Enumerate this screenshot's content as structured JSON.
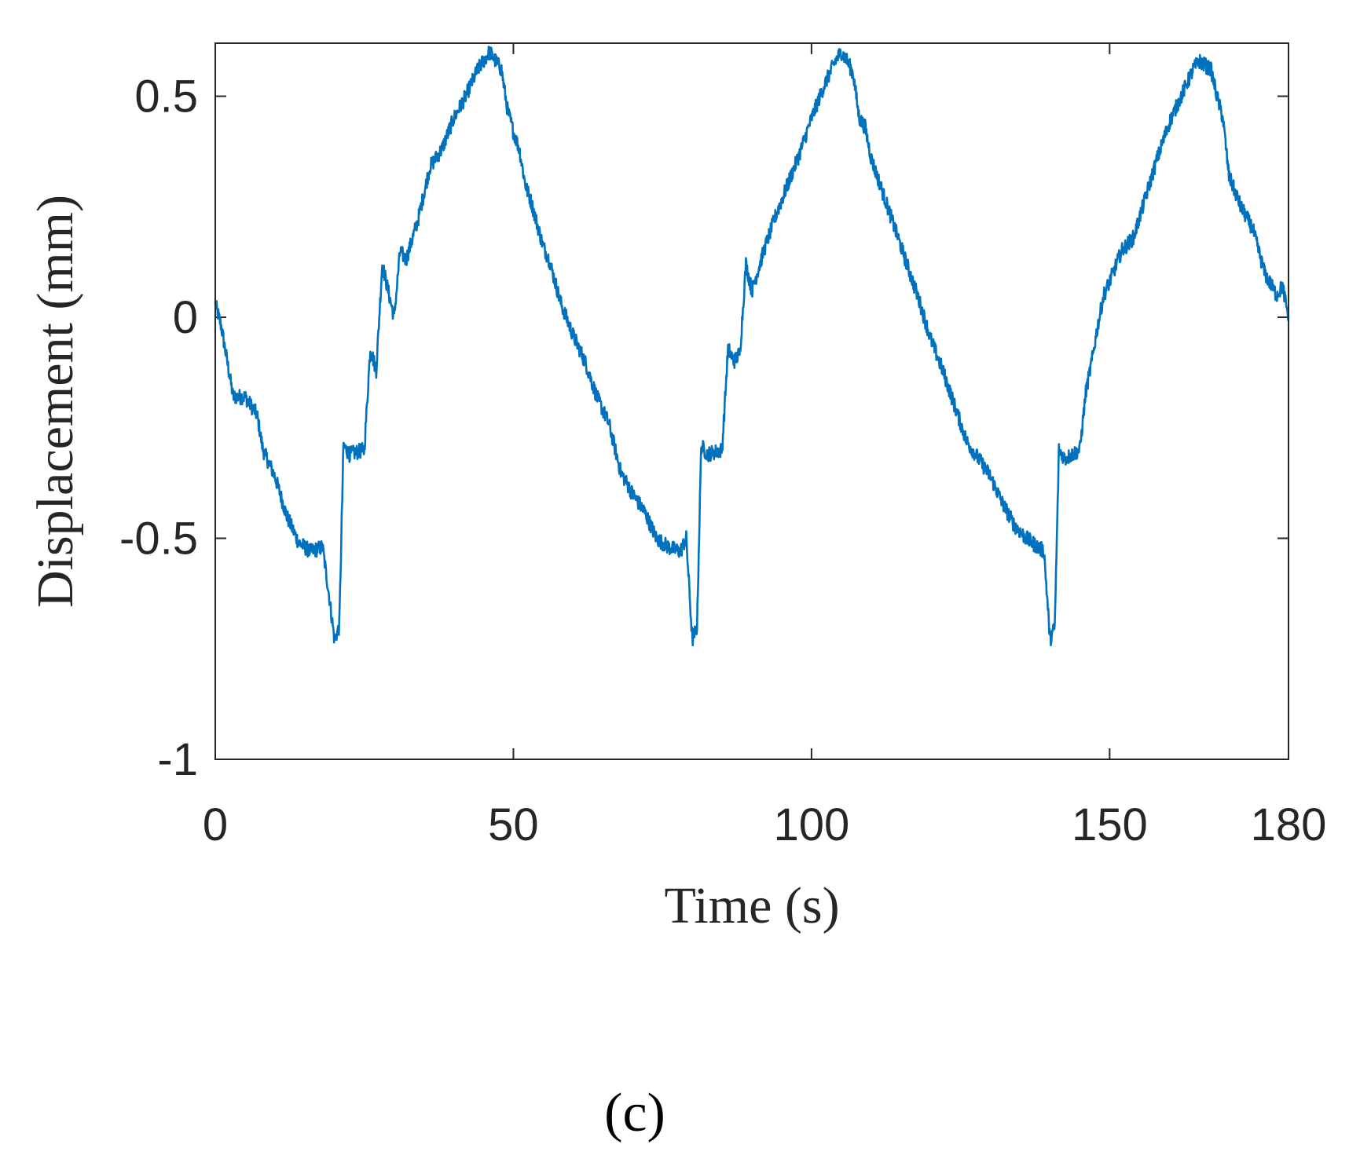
{
  "chart_data": {
    "type": "line",
    "xlabel": "Time (s)",
    "ylabel": "Displacement (mm)",
    "panel_label": "(c)",
    "xlim": [
      0,
      180
    ],
    "ylim": [
      -1,
      0.62
    ],
    "xticks": [
      0,
      50,
      100,
      150,
      180
    ],
    "xtick_labels": [
      "0",
      "50",
      "100",
      "150",
      "180"
    ],
    "yticks": [
      -1,
      -0.5,
      0,
      0.5
    ],
    "ytick_labels": [
      "-1",
      "-0.5",
      "0",
      "0.5"
    ],
    "grid": false,
    "line_color": "#0072BD",
    "series": [
      {
        "x": [
          0,
          1,
          2,
          3,
          5,
          7,
          8,
          10,
          12,
          14,
          16,
          18,
          19,
          20,
          20.8,
          21.5,
          22.5,
          25,
          26,
          27,
          28,
          29,
          30,
          31,
          32,
          34,
          36,
          38,
          40,
          42,
          44,
          46,
          47,
          48,
          49,
          50,
          51,
          52,
          53,
          55,
          56,
          58,
          60,
          62,
          64,
          66,
          68,
          70,
          72,
          74,
          76,
          78,
          79,
          80,
          80.8,
          81.5,
          82.5,
          85,
          86,
          87,
          88,
          89,
          90,
          92,
          94,
          96,
          98,
          100,
          102,
          104,
          105,
          106,
          107,
          108,
          109,
          110,
          112,
          114,
          116,
          118,
          120,
          122,
          124,
          126,
          128,
          130,
          132,
          134,
          136,
          138,
          139,
          140,
          140.8,
          141.5,
          142.5,
          145,
          146,
          147,
          148,
          149,
          150,
          152,
          154,
          156,
          158,
          160,
          162,
          164,
          165,
          166,
          167,
          168,
          169,
          170,
          172,
          174,
          176,
          178,
          179,
          180
        ],
        "y": [
          0.03,
          -0.02,
          -0.1,
          -0.18,
          -0.18,
          -0.22,
          -0.3,
          -0.36,
          -0.45,
          -0.51,
          -0.53,
          -0.52,
          -0.62,
          -0.73,
          -0.7,
          -0.29,
          -0.31,
          -0.3,
          -0.07,
          -0.12,
          0.12,
          0.06,
          0.0,
          0.15,
          0.13,
          0.22,
          0.34,
          0.38,
          0.45,
          0.5,
          0.56,
          0.6,
          0.58,
          0.56,
          0.47,
          0.42,
          0.38,
          0.3,
          0.26,
          0.16,
          0.13,
          0.03,
          -0.04,
          -0.1,
          -0.18,
          -0.24,
          -0.35,
          -0.4,
          -0.44,
          -0.5,
          -0.52,
          -0.53,
          -0.5,
          -0.73,
          -0.7,
          -0.29,
          -0.31,
          -0.3,
          -0.07,
          -0.1,
          -0.08,
          0.12,
          0.06,
          0.15,
          0.23,
          0.3,
          0.37,
          0.45,
          0.52,
          0.58,
          0.6,
          0.58,
          0.55,
          0.45,
          0.43,
          0.36,
          0.28,
          0.2,
          0.12,
          0.04,
          -0.05,
          -0.12,
          -0.2,
          -0.28,
          -0.32,
          -0.36,
          -0.42,
          -0.47,
          -0.5,
          -0.52,
          -0.53,
          -0.73,
          -0.7,
          -0.3,
          -0.32,
          -0.3,
          -0.17,
          -0.1,
          -0.02,
          0.05,
          0.08,
          0.15,
          0.18,
          0.27,
          0.36,
          0.44,
          0.5,
          0.56,
          0.58,
          0.57,
          0.56,
          0.5,
          0.45,
          0.32,
          0.25,
          0.2,
          0.1,
          0.05,
          0.07,
          0.0
        ]
      }
    ]
  }
}
